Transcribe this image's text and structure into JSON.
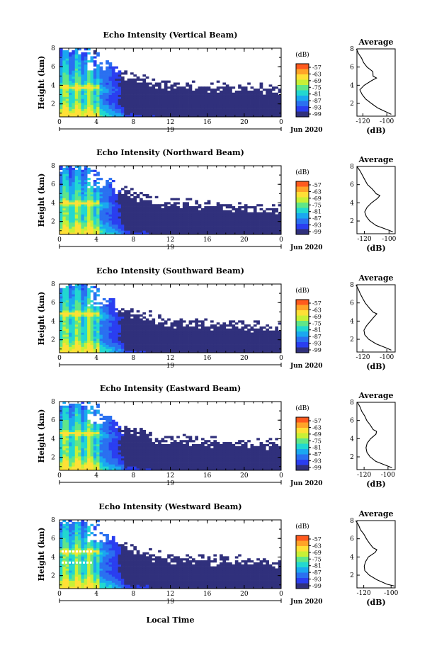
{
  "colorbar": {
    "unit": "(dB)",
    "labels": [
      "-57",
      "-63",
      "-69",
      "-75",
      "-81",
      "-87",
      "-93",
      "-99"
    ],
    "colors": [
      "#ff5a1e",
      "#ffa428",
      "#ffe036",
      "#c8f036",
      "#60e688",
      "#22d8d0",
      "#1aa8f0",
      "#2a70f0",
      "#2a3ef0",
      "#30307c"
    ]
  },
  "shared": {
    "time_ticks": [
      "0",
      "4",
      "8",
      "12",
      "16",
      "20",
      "0"
    ],
    "date_day": "19",
    "date_month": "Jun 2020",
    "height_ticks": [
      "2",
      "4",
      "6",
      "8"
    ],
    "height_label": "Height (km)",
    "xlabel": "Local Time",
    "avg_title": "Average",
    "avg_unit": "(dB)",
    "avg_x_ticks": [
      "-120",
      "-100"
    ]
  },
  "chart_data": [
    {
      "type": "heatmap",
      "title": "Echo Intensity (Vertical Beam)",
      "xlabel": "Local Time",
      "ylabel": "Height (km)",
      "xlim_hours": [
        0,
        24
      ],
      "ylim_km": [
        0.6,
        8
      ],
      "color_range_db": [
        -99,
        -57
      ],
      "first_layer_km": 3.8,
      "average_profile": {
        "height_km": [
          0.8,
          1.0,
          1.5,
          2.0,
          2.5,
          3.0,
          3.5,
          4.0,
          4.5,
          4.8,
          5.0,
          5.5,
          6.0,
          6.5,
          7.0,
          7.5,
          8.0
        ],
        "echo_db": [
          -96,
          -100,
          -108,
          -113,
          -118,
          -121,
          -122,
          -119,
          -113,
          -109,
          -111,
          -112,
          -117,
          -119,
          -121,
          -124,
          -126
        ],
        "xlim": [
          -125,
          -93
        ]
      }
    },
    {
      "type": "heatmap",
      "title": "Echo Intensity (Northward Beam)",
      "xlabel": "Local Time",
      "ylabel": "Height (km)",
      "xlim_hours": [
        0,
        24
      ],
      "ylim_km": [
        0.6,
        8
      ],
      "color_range_db": [
        -99,
        -57
      ],
      "first_layer_km": 4.0,
      "average_profile": {
        "height_km": [
          0.8,
          1.0,
          1.5,
          2.0,
          2.5,
          3.0,
          3.5,
          4.0,
          4.5,
          4.8,
          5.0,
          5.5,
          6.0,
          6.5,
          7.0,
          7.5,
          8.0
        ],
        "echo_db": [
          -97,
          -101,
          -110,
          -116,
          -118,
          -120,
          -118,
          -114,
          -109,
          -107,
          -110,
          -113,
          -117,
          -120,
          -122,
          -124,
          -126
        ],
        "xlim": [
          -126,
          -95
        ]
      }
    },
    {
      "type": "heatmap",
      "title": "Echo Intensity (Southward Beam)",
      "xlabel": "Local Time",
      "ylabel": "Height (km)",
      "xlim_hours": [
        0,
        24
      ],
      "ylim_km": [
        0.6,
        8
      ],
      "color_range_db": [
        -99,
        -57
      ],
      "first_layer_km": 4.8,
      "average_profile": {
        "height_km": [
          0.8,
          1.0,
          1.5,
          2.0,
          2.5,
          3.0,
          3.5,
          4.0,
          4.5,
          4.8,
          5.0,
          5.5,
          6.0,
          6.5,
          7.0,
          7.5,
          8.0
        ],
        "echo_db": [
          -96,
          -100,
          -109,
          -115,
          -118,
          -119,
          -117,
          -114,
          -110,
          -108,
          -112,
          -115,
          -118,
          -120,
          -122,
          -124,
          -126
        ],
        "xlim": [
          -125,
          -93
        ]
      }
    },
    {
      "type": "heatmap",
      "title": "Echo Intensity (Eastward Beam)",
      "xlabel": "Local Time",
      "ylabel": "Height (km)",
      "xlim_hours": [
        0,
        24
      ],
      "ylim_km": [
        0.6,
        8
      ],
      "color_range_db": [
        -99,
        -57
      ],
      "first_layer_km": 4.6,
      "average_profile": {
        "height_km": [
          0.8,
          1.0,
          1.5,
          2.0,
          2.5,
          3.0,
          3.5,
          4.0,
          4.5,
          4.8,
          5.0,
          5.5,
          6.0,
          6.5,
          7.0,
          7.5,
          8.0
        ],
        "echo_db": [
          -97,
          -101,
          -110,
          -115,
          -118,
          -119,
          -118,
          -114,
          -110,
          -109,
          -112,
          -115,
          -118,
          -120,
          -122,
          -124,
          -126
        ],
        "xlim": [
          -126,
          -94
        ]
      }
    },
    {
      "type": "heatmap",
      "title": "Echo Intensity (Westward Beam)",
      "xlabel": "Local Time",
      "ylabel": "Height (km)",
      "xlim_hours": [
        0,
        24
      ],
      "ylim_km": [
        0.6,
        8
      ],
      "color_range_db": [
        -99,
        -57
      ],
      "first_layer_km": 4.6,
      "average_profile": {
        "height_km": [
          0.8,
          1.0,
          1.5,
          2.0,
          2.5,
          3.0,
          3.5,
          4.0,
          4.5,
          4.8,
          5.0,
          5.5,
          6.0,
          6.5,
          7.0,
          7.5,
          8.0
        ],
        "echo_db": [
          -97,
          -103,
          -111,
          -116,
          -119,
          -120,
          -119,
          -117,
          -112,
          -110,
          -113,
          -116,
          -118,
          -120,
          -122,
          -124,
          -126
        ],
        "xlim": [
          -125,
          -97
        ]
      }
    }
  ]
}
